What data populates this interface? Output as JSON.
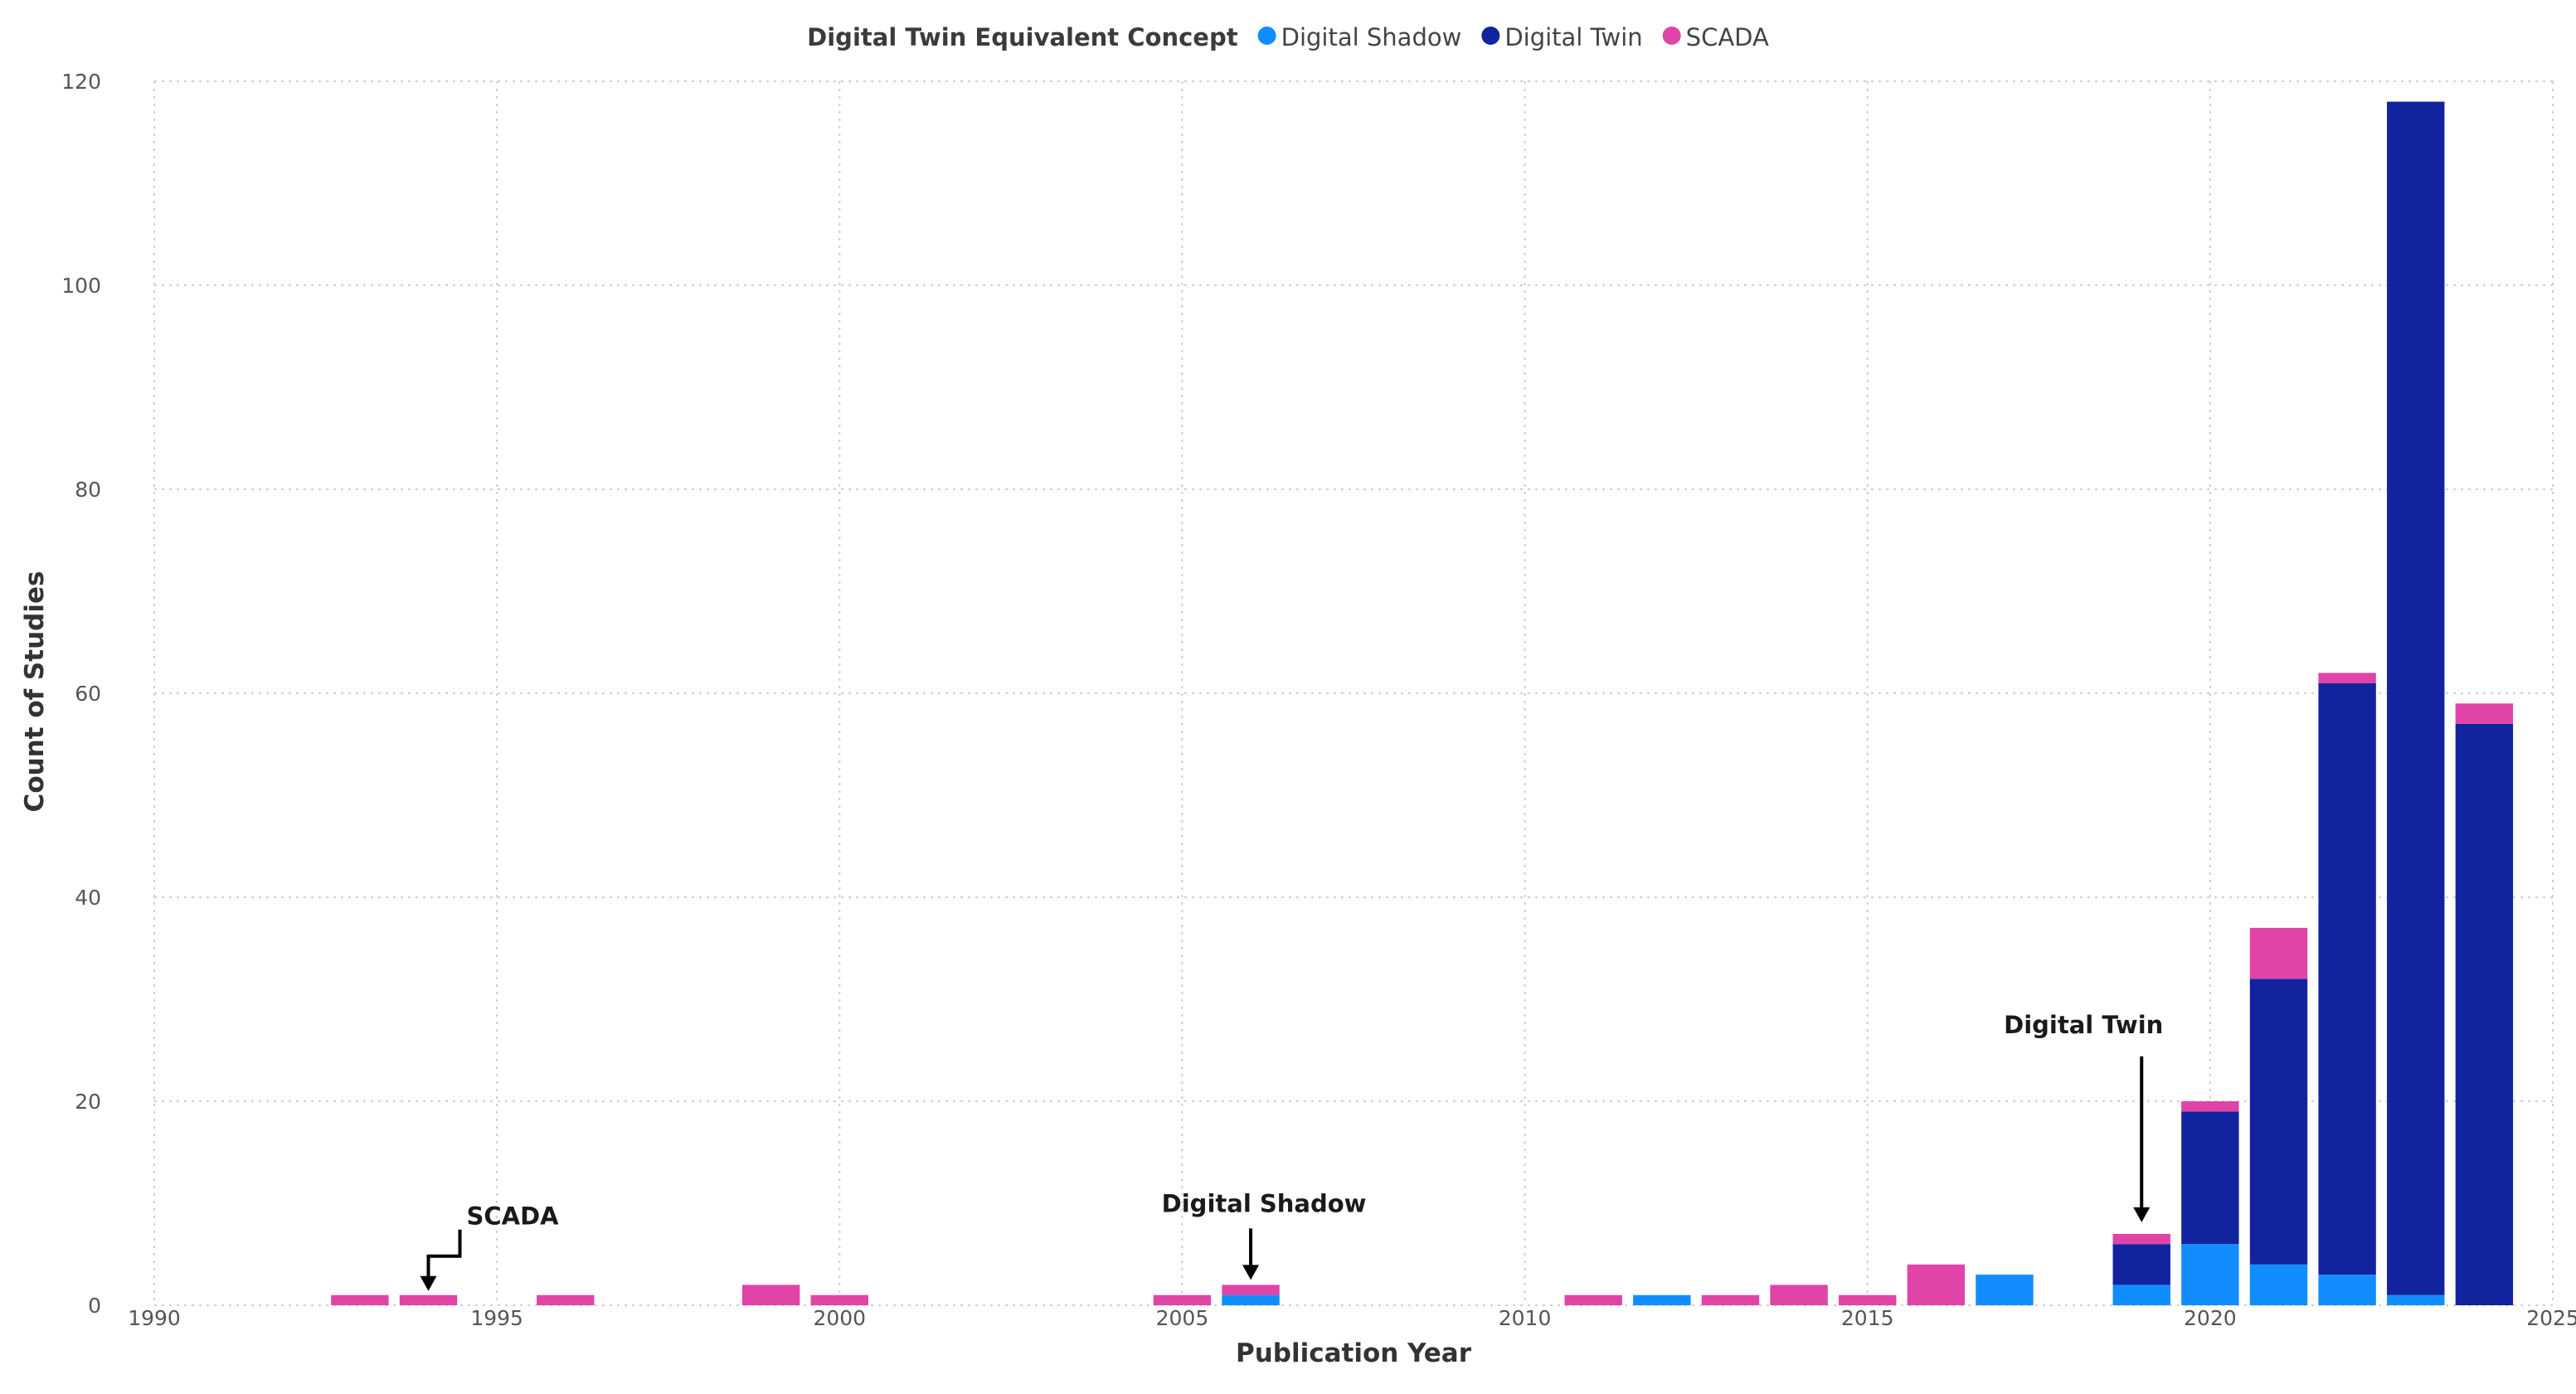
{
  "chart_data": {
    "type": "bar",
    "stacked": true,
    "legend": {
      "title": "Digital Twin Equivalent Concept",
      "placement": "top-center"
    },
    "xlabel": "Publication Year",
    "ylabel": "Count of Studies",
    "xlim": [
      1990,
      2025
    ],
    "ylim": [
      0,
      120
    ],
    "xticks": [
      1990,
      1995,
      2000,
      2005,
      2010,
      2015,
      2020,
      2025
    ],
    "yticks": [
      0,
      20,
      40,
      60,
      80,
      100,
      120
    ],
    "grid": true,
    "categories": [
      1993,
      1994,
      1996,
      1999,
      2000,
      2005,
      2006,
      2011,
      2012,
      2013,
      2014,
      2015,
      2016,
      2017,
      2019,
      2020,
      2021,
      2022,
      2023,
      2024
    ],
    "series": [
      {
        "name": "Digital Shadow",
        "color": "#118dff",
        "values": [
          0,
          0,
          0,
          0,
          0,
          0,
          1,
          0,
          1,
          0,
          0,
          0,
          0,
          3,
          2,
          6,
          4,
          3,
          1,
          0
        ]
      },
      {
        "name": "Digital Twin",
        "color": "#12239e",
        "values": [
          0,
          0,
          0,
          0,
          0,
          0,
          0,
          0,
          0,
          0,
          0,
          0,
          0,
          0,
          4,
          13,
          28,
          58,
          117,
          57
        ]
      },
      {
        "name": "SCADA",
        "color": "#e044a7",
        "values": [
          1,
          1,
          1,
          2,
          1,
          1,
          1,
          1,
          0,
          1,
          2,
          1,
          4,
          0,
          1,
          1,
          5,
          1,
          0,
          2
        ]
      }
    ],
    "annotations": [
      {
        "text": "SCADA",
        "x": 1994,
        "y": 1
      },
      {
        "text": "Digital Shadow",
        "x": 2006,
        "y": 2
      },
      {
        "text": "Digital Twin",
        "x": 2019,
        "y": 7
      }
    ]
  }
}
